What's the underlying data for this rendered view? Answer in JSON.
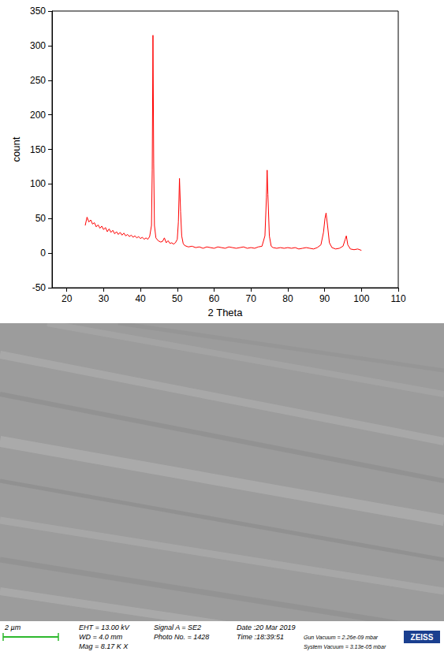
{
  "chart_data": {
    "type": "line",
    "xlabel": "2 Theta",
    "ylabel": "count",
    "color": "#ff0000",
    "x": [
      25,
      25.5,
      26,
      26.5,
      27,
      27.5,
      28,
      28.5,
      29,
      29.5,
      30,
      30.5,
      31,
      31.5,
      32,
      32.5,
      33,
      33.5,
      34,
      34.5,
      35,
      35.5,
      36,
      36.5,
      37,
      37.5,
      38,
      38.5,
      39,
      39.5,
      40,
      40.5,
      41,
      41.5,
      42,
      42.5,
      43,
      43.2,
      43.4,
      43.6,
      43.8,
      44.2,
      44.8,
      45.5,
      46,
      46.5,
      47,
      47.5,
      48,
      48.5,
      49,
      49.5,
      50,
      50.3,
      50.6,
      50.9,
      51.2,
      51.6,
      52,
      53,
      54,
      55,
      56,
      57,
      58,
      59,
      60,
      61,
      62,
      63,
      64,
      65,
      66,
      67,
      68,
      69,
      70,
      71,
      72,
      73,
      73.8,
      74.2,
      74.4,
      74.6,
      75,
      75.5,
      76,
      77,
      78,
      79,
      80,
      81,
      82,
      83,
      84,
      85,
      86,
      87,
      88,
      89,
      89.7,
      90.1,
      90.4,
      90.8,
      91.3,
      92,
      93,
      94,
      95,
      95.6,
      95.9,
      96.3,
      97,
      98,
      99,
      100
    ],
    "values": [
      40,
      52,
      45,
      48,
      42,
      44,
      38,
      41,
      36,
      39,
      34,
      37,
      31,
      35,
      30,
      33,
      28,
      31,
      27,
      30,
      26,
      29,
      25,
      27,
      24,
      26,
      23,
      25,
      22,
      24,
      21,
      23,
      20,
      22,
      20,
      24,
      40,
      120,
      315,
      130,
      40,
      22,
      18,
      16,
      17,
      22,
      15,
      18,
      14,
      15,
      13,
      15,
      20,
      45,
      108,
      60,
      25,
      14,
      11,
      9,
      10,
      8,
      9,
      7,
      9,
      8,
      7,
      9,
      8,
      7,
      9,
      8,
      7,
      8,
      9,
      7,
      8,
      7,
      9,
      10,
      25,
      80,
      120,
      85,
      25,
      10,
      8,
      7,
      8,
      7,
      8,
      7,
      8,
      6,
      7,
      8,
      7,
      6,
      8,
      12,
      30,
      50,
      58,
      40,
      15,
      8,
      6,
      7,
      10,
      20,
      25,
      12,
      6,
      5,
      6,
      4
    ],
    "xlim": [
      16,
      110
    ],
    "xticks": [
      20,
      30,
      40,
      50,
      60,
      70,
      80,
      90,
      100,
      110
    ],
    "ylim": [
      -50,
      350
    ],
    "yticks": [
      -50,
      0,
      50,
      100,
      150,
      200,
      250,
      300,
      350
    ],
    "grid": false
  },
  "micrograph": {
    "scale_bar": "2 µm",
    "columns": [
      [
        "EHT = 13.00 kV",
        "WD = 4.0 mm",
        "Mag = 8.17 K X"
      ],
      [
        "Signal A = SE2",
        "Photo No. = 1428"
      ],
      [
        "Date :20 Mar 2019",
        "Time :18:39:51"
      ],
      [
        "Gun Vacuum = 2.26e-09 mbar",
        "System Vacuum = 3.13e-05 mbar"
      ]
    ],
    "logo": "ZEISS"
  }
}
